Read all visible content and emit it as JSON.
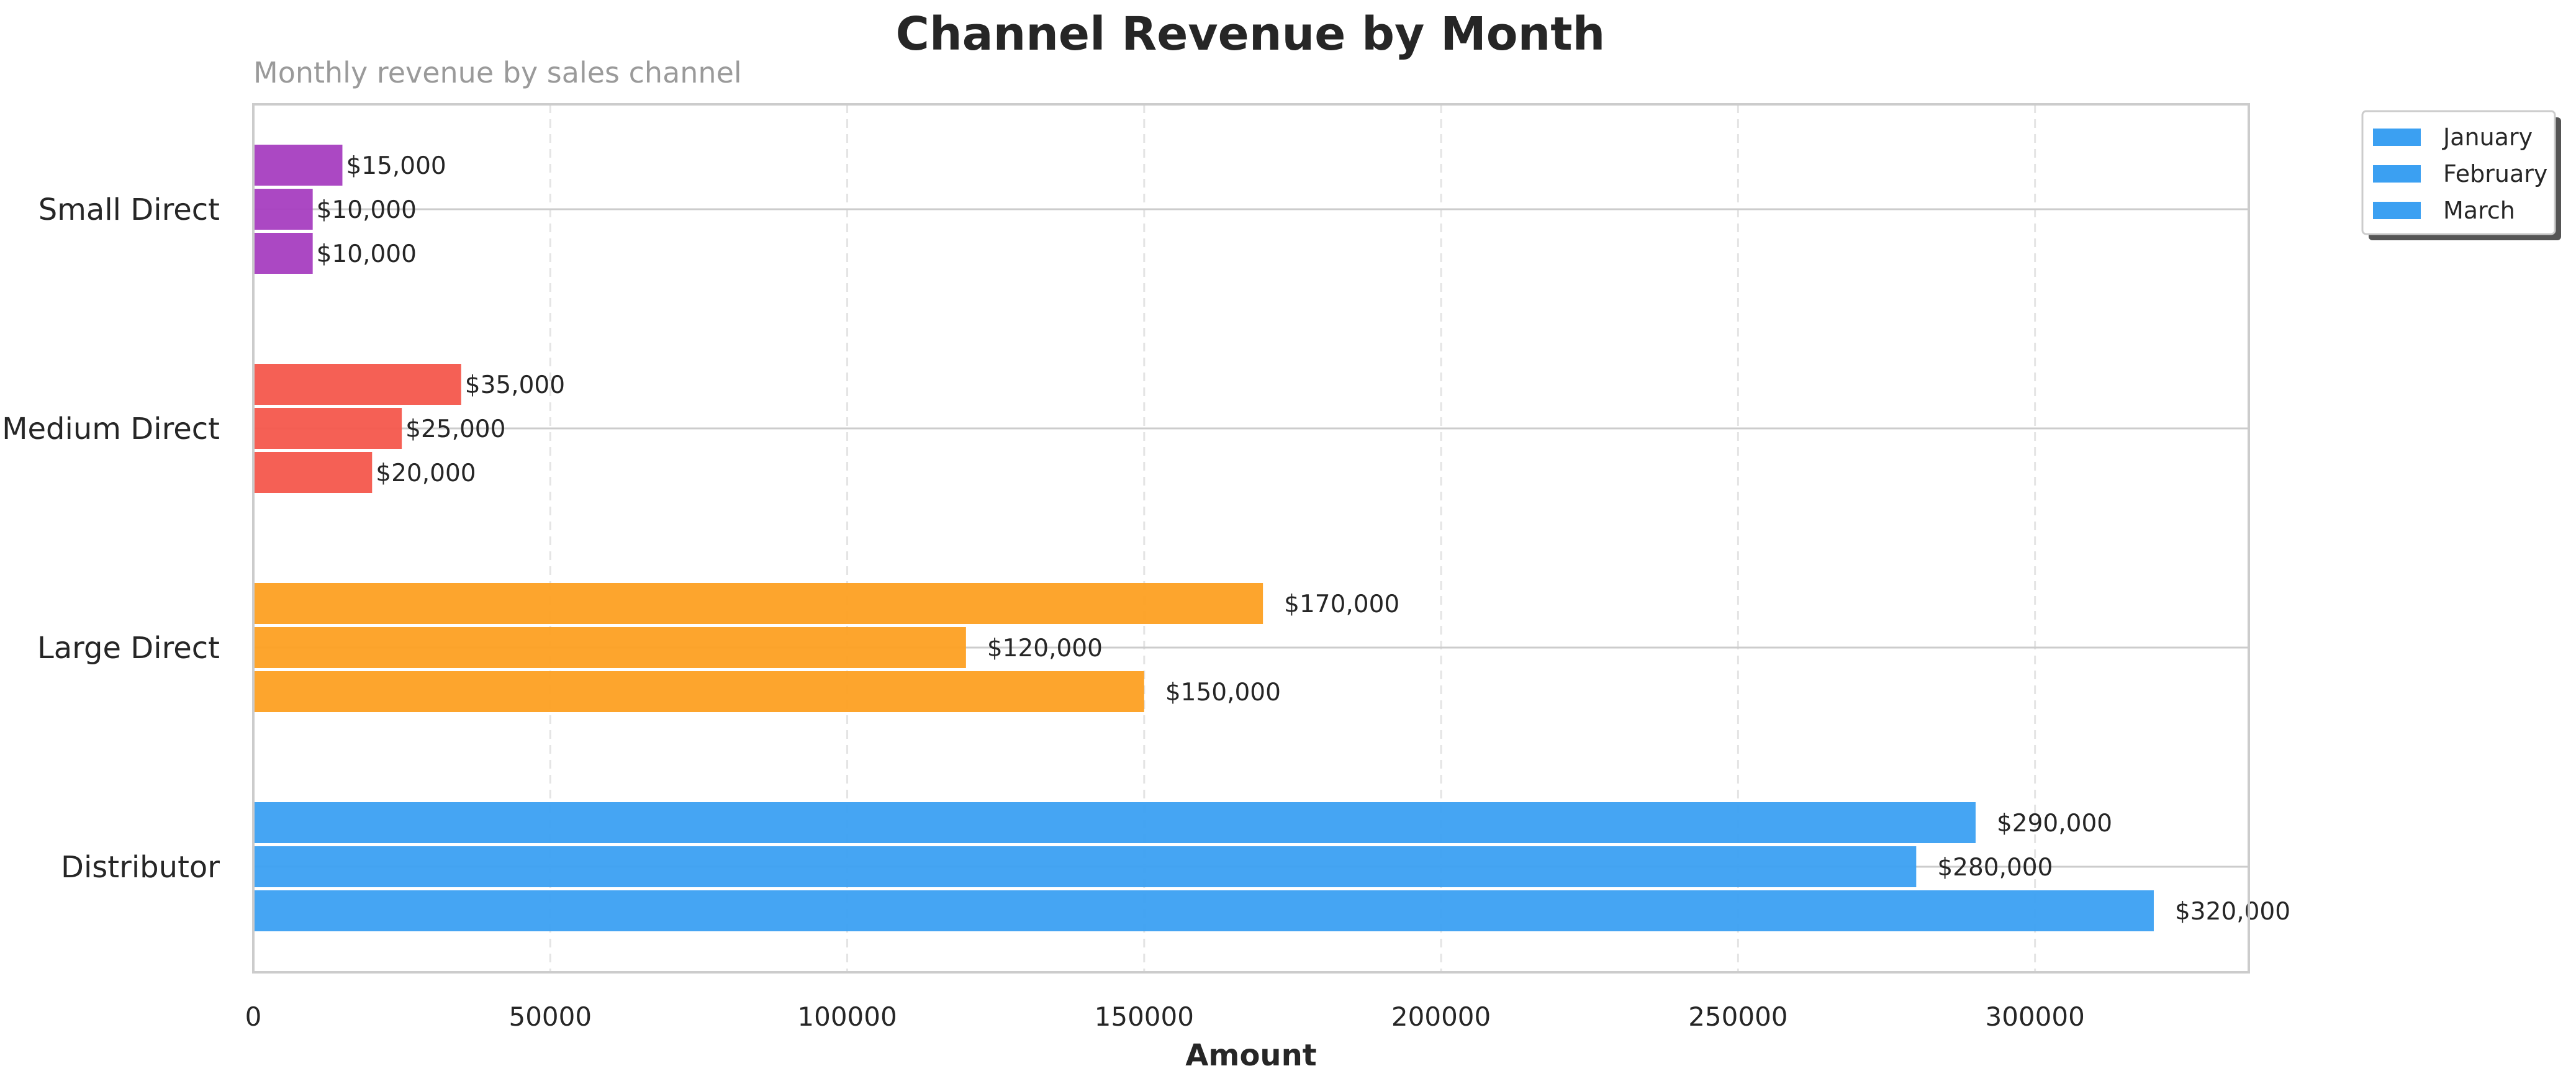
{
  "chart_data": {
    "type": "bar",
    "orientation": "horizontal",
    "title": "Channel Revenue by Month",
    "subtitle": "Monthly revenue by sales channel",
    "xlabel": "Amount",
    "ylabel": "",
    "xlim": [
      0,
      336000
    ],
    "x_ticks": [
      0,
      50000,
      100000,
      150000,
      200000,
      250000,
      300000
    ],
    "x_tick_labels": [
      "0",
      "50000",
      "100000",
      "150000",
      "200000",
      "250000",
      "300000"
    ],
    "grid": "x-dashed",
    "legend_position": "outside-top-right",
    "categories": [
      "Small Direct",
      "Medium Direct",
      "Large Direct",
      "Distributor"
    ],
    "category_colors": [
      "#a63ec0",
      "#f4574c",
      "#fda022",
      "#3ba0f2"
    ],
    "series": [
      {
        "name": "January",
        "values": [
          15000,
          35000,
          170000,
          290000
        ],
        "legend_color": "#3ba0f2"
      },
      {
        "name": "February",
        "values": [
          10000,
          25000,
          120000,
          280000
        ],
        "legend_color": "#3ba0f2"
      },
      {
        "name": "March",
        "values": [
          10000,
          20000,
          150000,
          320000
        ],
        "legend_color": "#3ba0f2"
      }
    ],
    "data_labels": [
      [
        "$15,000",
        "$35,000",
        "$170,000",
        "$290,000"
      ],
      [
        "$10,000",
        "$25,000",
        "$120,000",
        "$280,000"
      ],
      [
        "$10,000",
        "$20,000",
        "$150,000",
        "$320,000"
      ]
    ]
  }
}
